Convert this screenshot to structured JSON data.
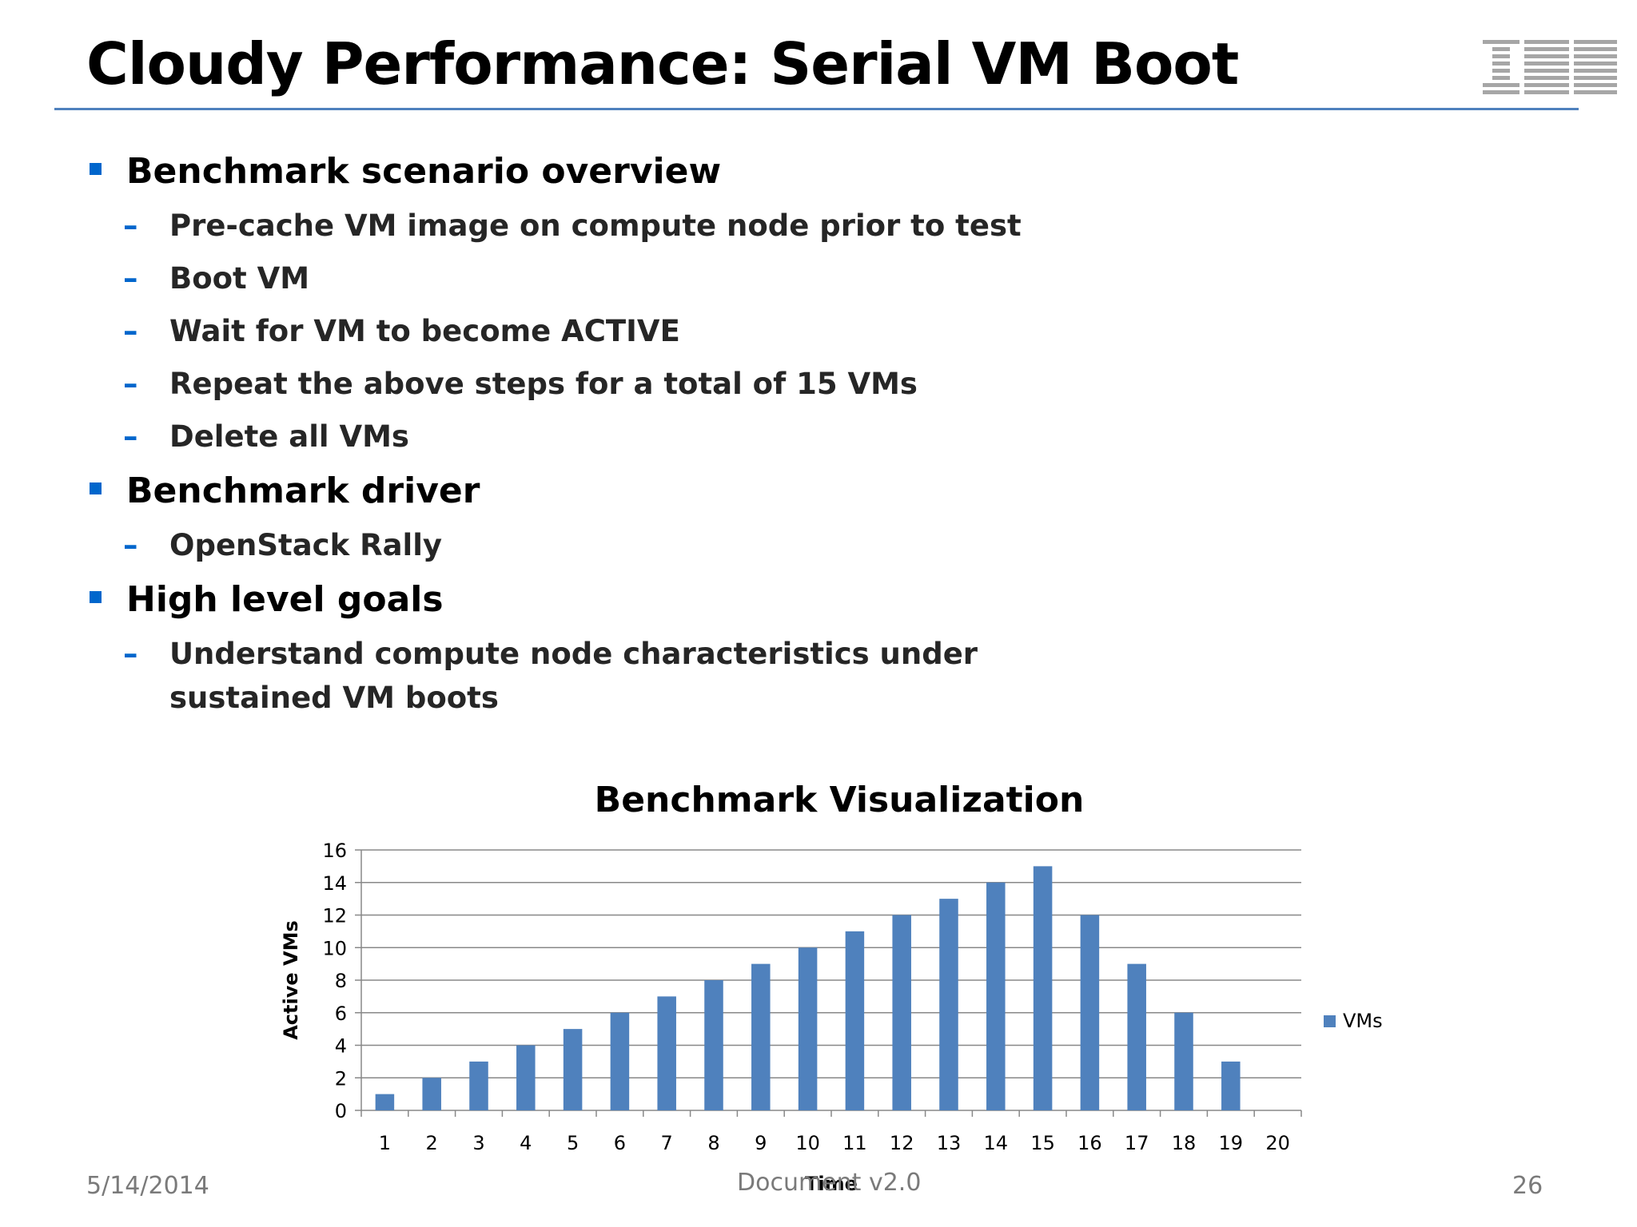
{
  "slide": {
    "title": "Cloudy Performance: Serial VM Boot",
    "logo_text": "IBM",
    "bullets": [
      {
        "label": "Benchmark scenario overview",
        "subs": [
          "Pre-cache VM image on compute node prior to test",
          "Boot VM",
          "Wait for VM to become ACTIVE",
          "Repeat the above steps for a total of 15 VMs",
          "Delete all VMs"
        ]
      },
      {
        "label": "Benchmark driver",
        "subs": [
          "OpenStack Rally"
        ]
      },
      {
        "label": "High level goals",
        "subs": [
          "Understand compute node characteristics under sustained VM boots"
        ]
      }
    ],
    "sub_marker": "–"
  },
  "footer": {
    "date": "5/14/2014",
    "doc": "Document v2.0",
    "page": "26"
  },
  "colors": {
    "accent": "#0066cc",
    "rule": "#4f81bd",
    "bar": "#4f81bd"
  },
  "chart_data": {
    "type": "bar",
    "title": "Benchmark Visualization",
    "xlabel": "Time",
    "ylabel": "Active VMs",
    "categories": [
      "1",
      "2",
      "3",
      "4",
      "5",
      "6",
      "7",
      "8",
      "9",
      "10",
      "11",
      "12",
      "13",
      "14",
      "15",
      "16",
      "17",
      "18",
      "19",
      "20"
    ],
    "series": [
      {
        "name": "VMs",
        "values": [
          1,
          2,
          3,
          4,
          5,
          6,
          7,
          8,
          9,
          10,
          11,
          12,
          13,
          14,
          15,
          12,
          9,
          6,
          3,
          0
        ]
      }
    ],
    "yticks": [
      "0",
      "2",
      "4",
      "6",
      "8",
      "10",
      "12",
      "14",
      "16"
    ],
    "ylim": [
      0,
      16
    ],
    "grid": true,
    "legend": "right"
  }
}
